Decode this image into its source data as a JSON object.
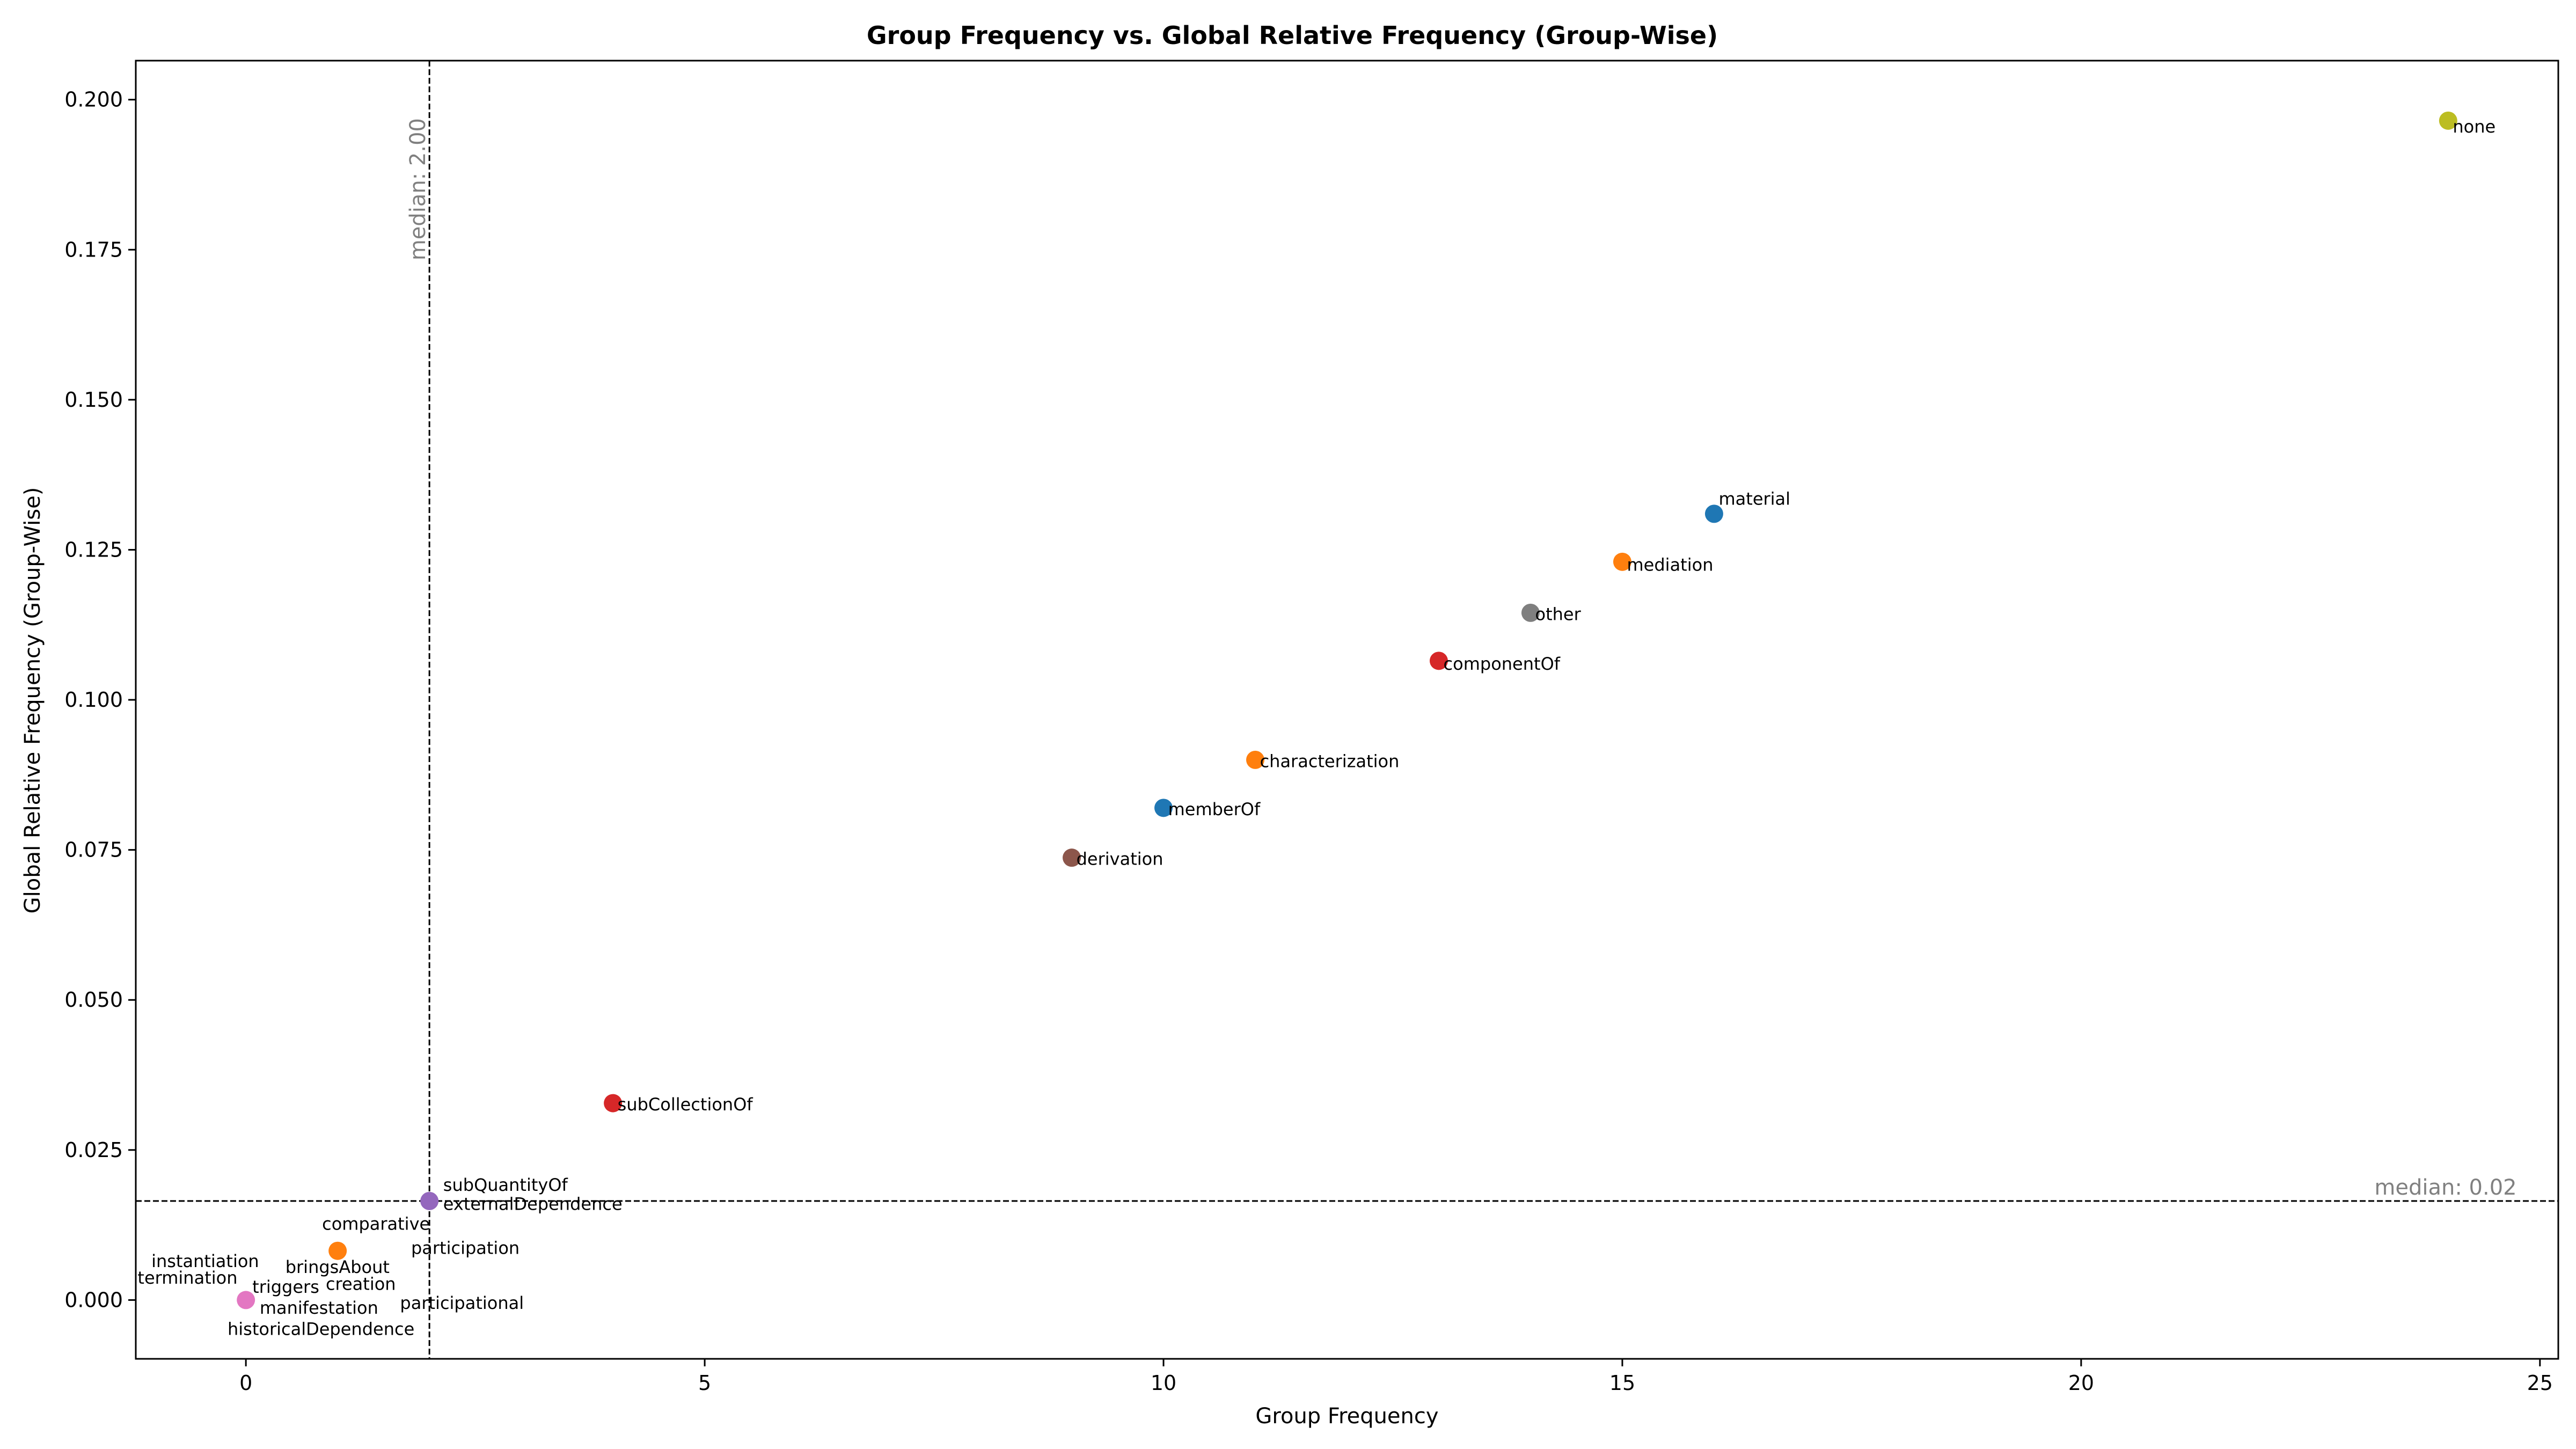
{
  "chart_data": {
    "type": "scatter",
    "title": "Group Frequency vs. Global Relative Frequency (Group-Wise)",
    "xlabel": "Group Frequency",
    "ylabel": "Global Relative Frequency (Group-Wise)",
    "xlim": [
      -1.2,
      25.2
    ],
    "ylim": [
      -0.0098,
      0.2065
    ],
    "xticks": [
      0,
      5,
      10,
      15,
      20,
      25
    ],
    "yticks": [
      0.0,
      0.025,
      0.05,
      0.075,
      0.1,
      0.125,
      0.15,
      0.175,
      0.2
    ],
    "ytick_labels": [
      "0.000",
      "0.025",
      "0.050",
      "0.075",
      "0.100",
      "0.125",
      "0.150",
      "0.175",
      "0.200"
    ],
    "grid": false,
    "median_x": {
      "value": 2,
      "label": "median: 2.00"
    },
    "median_y": {
      "value": 0.0165,
      "label": "median: 0.02"
    },
    "points": [
      {
        "x": 24,
        "y": 0.1965,
        "color": "#bcbd22"
      },
      {
        "x": 16,
        "y": 0.131,
        "color": "#1f77b4"
      },
      {
        "x": 15,
        "y": 0.123,
        "color": "#ff7f0e"
      },
      {
        "x": 14,
        "y": 0.1145,
        "color": "#7f7f7f"
      },
      {
        "x": 13,
        "y": 0.1065,
        "color": "#d62728"
      },
      {
        "x": 11,
        "y": 0.09,
        "color": "#ff7f0e"
      },
      {
        "x": 10,
        "y": 0.082,
        "color": "#1f77b4"
      },
      {
        "x": 9,
        "y": 0.0737,
        "color": "#8c564b"
      },
      {
        "x": 4,
        "y": 0.0328,
        "color": "#d62728"
      },
      {
        "x": 2,
        "y": 0.0165,
        "color": "#9467bd"
      },
      {
        "x": 1,
        "y": 0.0082,
        "color": "#ff7f0e"
      },
      {
        "x": 0,
        "y": 0.0,
        "color": "#e377c2"
      }
    ],
    "labels": [
      {
        "text": "none",
        "x": 24.05,
        "y": 0.1945,
        "color": "#0000ff"
      },
      {
        "text": "material",
        "x": 16.05,
        "y": 0.1325,
        "color": "#000000"
      },
      {
        "text": "mediation",
        "x": 15.05,
        "y": 0.1215,
        "color": "#000000"
      },
      {
        "text": "other",
        "x": 14.05,
        "y": 0.1133,
        "color": "#ff0000"
      },
      {
        "text": "componentOf",
        "x": 13.05,
        "y": 0.105,
        "color": "#000000"
      },
      {
        "text": "characterization",
        "x": 11.05,
        "y": 0.0888,
        "color": "#000000"
      },
      {
        "text": "memberOf",
        "x": 10.05,
        "y": 0.0808,
        "color": "#000000"
      },
      {
        "text": "derivation",
        "x": 9.05,
        "y": 0.0725,
        "color": "#000000"
      },
      {
        "text": "subCollectionOf",
        "x": 4.05,
        "y": 0.0316,
        "color": "#000000"
      },
      {
        "text": "subQuantityOf",
        "x": 2.15,
        "y": 0.0182,
        "color": "#000000"
      },
      {
        "text": "externalDependence",
        "x": 2.15,
        "y": 0.015,
        "color": "#000000"
      },
      {
        "text": "comparative",
        "x": 0.83,
        "y": 0.0117,
        "color": "#000000"
      },
      {
        "text": "participation",
        "x": 1.8,
        "y": 0.0077,
        "color": "#000000"
      },
      {
        "text": "instantiation",
        "x": -1.03,
        "y": 0.0055,
        "color": "#000000"
      },
      {
        "text": "bringsAbout",
        "x": 0.43,
        "y": 0.0045,
        "color": "#000000"
      },
      {
        "text": "termination",
        "x": -1.18,
        "y": 0.0027,
        "color": "#000000"
      },
      {
        "text": "triggers",
        "x": 0.07,
        "y": 0.0012,
        "color": "#000000"
      },
      {
        "text": "creation",
        "x": 0.87,
        "y": 0.0017,
        "color": "#000000"
      },
      {
        "text": "manifestation",
        "x": 0.15,
        "y": -0.0023,
        "color": "#000000"
      },
      {
        "text": "participational",
        "x": 1.68,
        "y": -0.0015,
        "color": "#000000"
      },
      {
        "text": "historicalDependence",
        "x": -0.2,
        "y": -0.0058,
        "color": "#000000"
      }
    ]
  }
}
